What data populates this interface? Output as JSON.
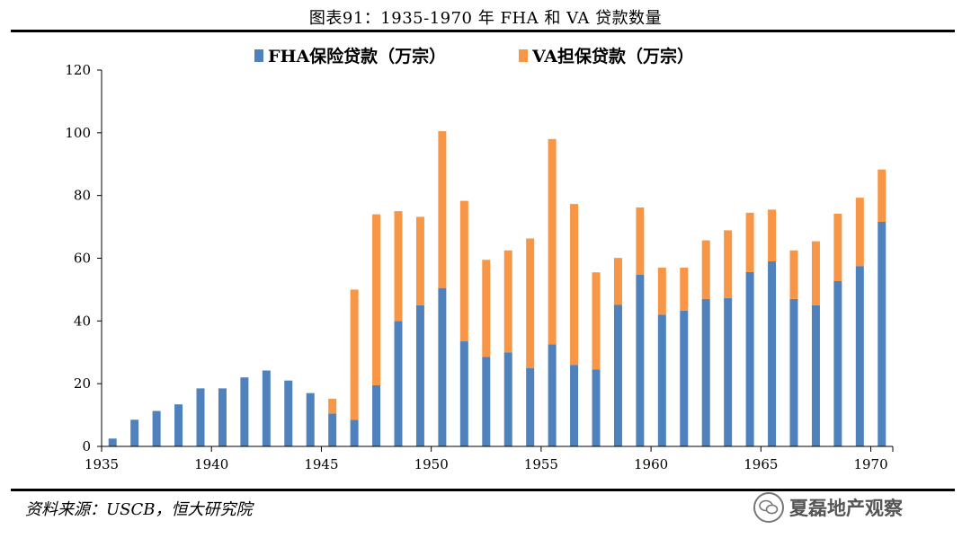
{
  "figure": {
    "title": "图表91：1935-1970 年 FHA 和 VA 贷款数量",
    "source": "资料来源：USCB，恒大研究院",
    "watermark": "夏磊地产观察"
  },
  "chart_data": {
    "type": "bar",
    "stacked": true,
    "x": [
      1935,
      1936,
      1937,
      1938,
      1939,
      1940,
      1941,
      1942,
      1943,
      1944,
      1945,
      1946,
      1947,
      1948,
      1949,
      1950,
      1951,
      1952,
      1953,
      1954,
      1955,
      1956,
      1957,
      1958,
      1959,
      1960,
      1961,
      1962,
      1963,
      1964,
      1965,
      1966,
      1967,
      1968,
      1969,
      1970
    ],
    "series": [
      {
        "name": "FHA保险贷款（万宗）",
        "color": "#4f81bd",
        "values": [
          2.5,
          8.5,
          11.3,
          13.4,
          18.5,
          18.5,
          22.0,
          24.2,
          21.0,
          17.0,
          10.5,
          8.5,
          19.5,
          40.0,
          45.0,
          50.5,
          33.5,
          28.5,
          30.0,
          25.0,
          32.5,
          26.0,
          24.5,
          45.2,
          54.7,
          42.0,
          43.3,
          47.0,
          47.3,
          55.6,
          59.0,
          47.0,
          45.0,
          52.7,
          57.5,
          71.6
        ]
      },
      {
        "name": "VA担保贷款（万宗）",
        "color": "#f79646",
        "values": [
          0,
          0,
          0,
          0,
          0,
          0,
          0,
          0,
          0,
          0,
          4.7,
          41.5,
          54.5,
          35.0,
          28.2,
          50.0,
          44.8,
          31.0,
          32.5,
          41.3,
          65.5,
          51.3,
          31.0,
          14.9,
          21.5,
          15.0,
          13.7,
          18.7,
          21.6,
          18.9,
          16.5,
          15.5,
          20.4,
          21.5,
          21.8,
          16.7
        ]
      }
    ],
    "ylim": [
      0,
      120
    ],
    "yticks": [
      0,
      20,
      40,
      60,
      80,
      100,
      120
    ],
    "xtick_labels": [
      1935,
      1940,
      1945,
      1950,
      1955,
      1960,
      1965,
      1970
    ],
    "legend_position": "top-center",
    "grid": false
  }
}
